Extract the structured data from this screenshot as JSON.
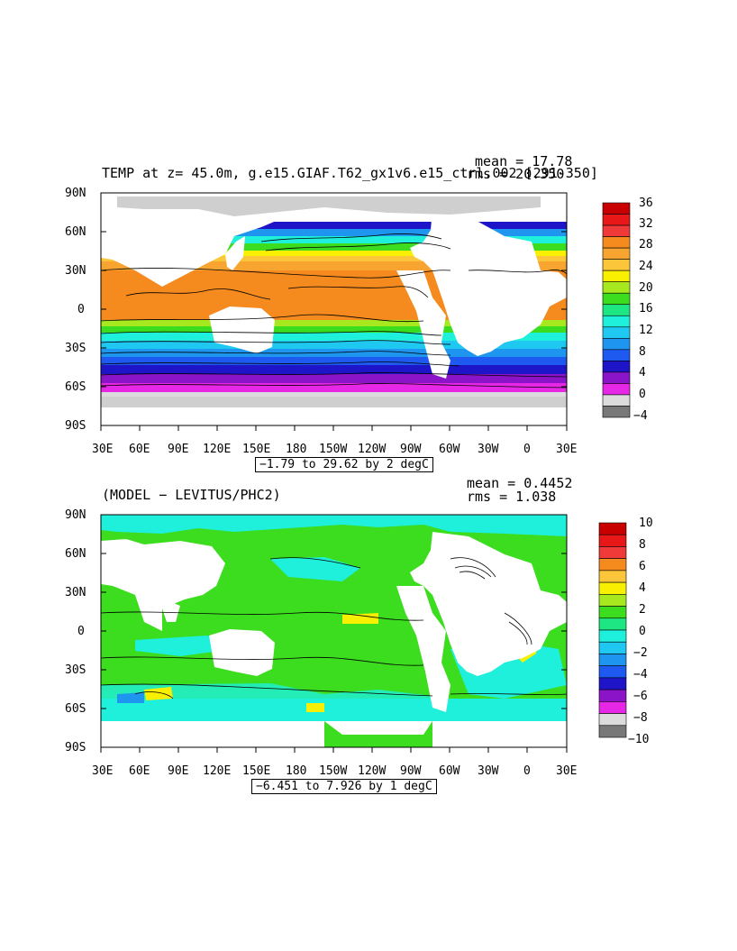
{
  "panels": [
    {
      "id": "top",
      "title": "TEMP at z=  45.0m, g.e15.GIAF.T62_gx1v6.e15_ctrl.002 [291-350]",
      "stats": {
        "mean": "mean = 17.78",
        "rms": "rms = 20.350"
      },
      "contour_info": "−1.79 to 29.62 by 2 degC",
      "y_tick_labels": [
        "90N",
        "60N",
        "30N",
        "0",
        "30S",
        "60S",
        "90S"
      ],
      "x_tick_labels": [
        "30E",
        "60E",
        "90E",
        "120E",
        "150E",
        "180",
        "150W",
        "120W",
        "90W",
        "60W",
        "30W",
        "0",
        "30E"
      ],
      "colorbar": {
        "labels": [
          "36",
          "32",
          "28",
          "24",
          "20",
          "16",
          "12",
          "8",
          "4",
          "0",
          "−4"
        ],
        "colors": [
          "#c80000",
          "#e81818",
          "#f03a3a",
          "#f58a1e",
          "#f7a530",
          "#fbc63a",
          "#f8f000",
          "#a8e81e",
          "#3cdc1e",
          "#1ee682",
          "#1ef0dc",
          "#1ec8f0",
          "#1e96f0",
          "#1e5af0",
          "#1e14c8",
          "#8c14c8",
          "#e628e6",
          "#dcdcdc",
          "#787878"
        ]
      }
    },
    {
      "id": "bottom",
      "title": "(MODEL − LEVITUS/PHC2)",
      "stats": {
        "mean": "mean = 0.4452",
        "rms": "rms = 1.038"
      },
      "contour_info": "−6.451 to 7.926 by 1 degC",
      "y_tick_labels": [
        "90N",
        "60N",
        "30N",
        "0",
        "30S",
        "60S",
        "90S"
      ],
      "x_tick_labels": [
        "30E",
        "60E",
        "90E",
        "120E",
        "150E",
        "180",
        "150W",
        "120W",
        "90W",
        "60W",
        "30W",
        "0",
        "30E"
      ],
      "colorbar": {
        "labels": [
          "10",
          "8",
          "6",
          "4",
          "2",
          "0",
          "−2",
          "−4",
          "−6",
          "−8",
          "−10"
        ],
        "colors": [
          "#c80000",
          "#e81818",
          "#f03a3a",
          "#f58a1e",
          "#fbc63a",
          "#f8f000",
          "#a8e81e",
          "#3cdc1e",
          "#1ee682",
          "#1ef0dc",
          "#1ec8f0",
          "#1e96f0",
          "#1e5af0",
          "#1e14c8",
          "#8c14c8",
          "#e628e6",
          "#dcdcdc",
          "#787878"
        ]
      }
    }
  ]
}
